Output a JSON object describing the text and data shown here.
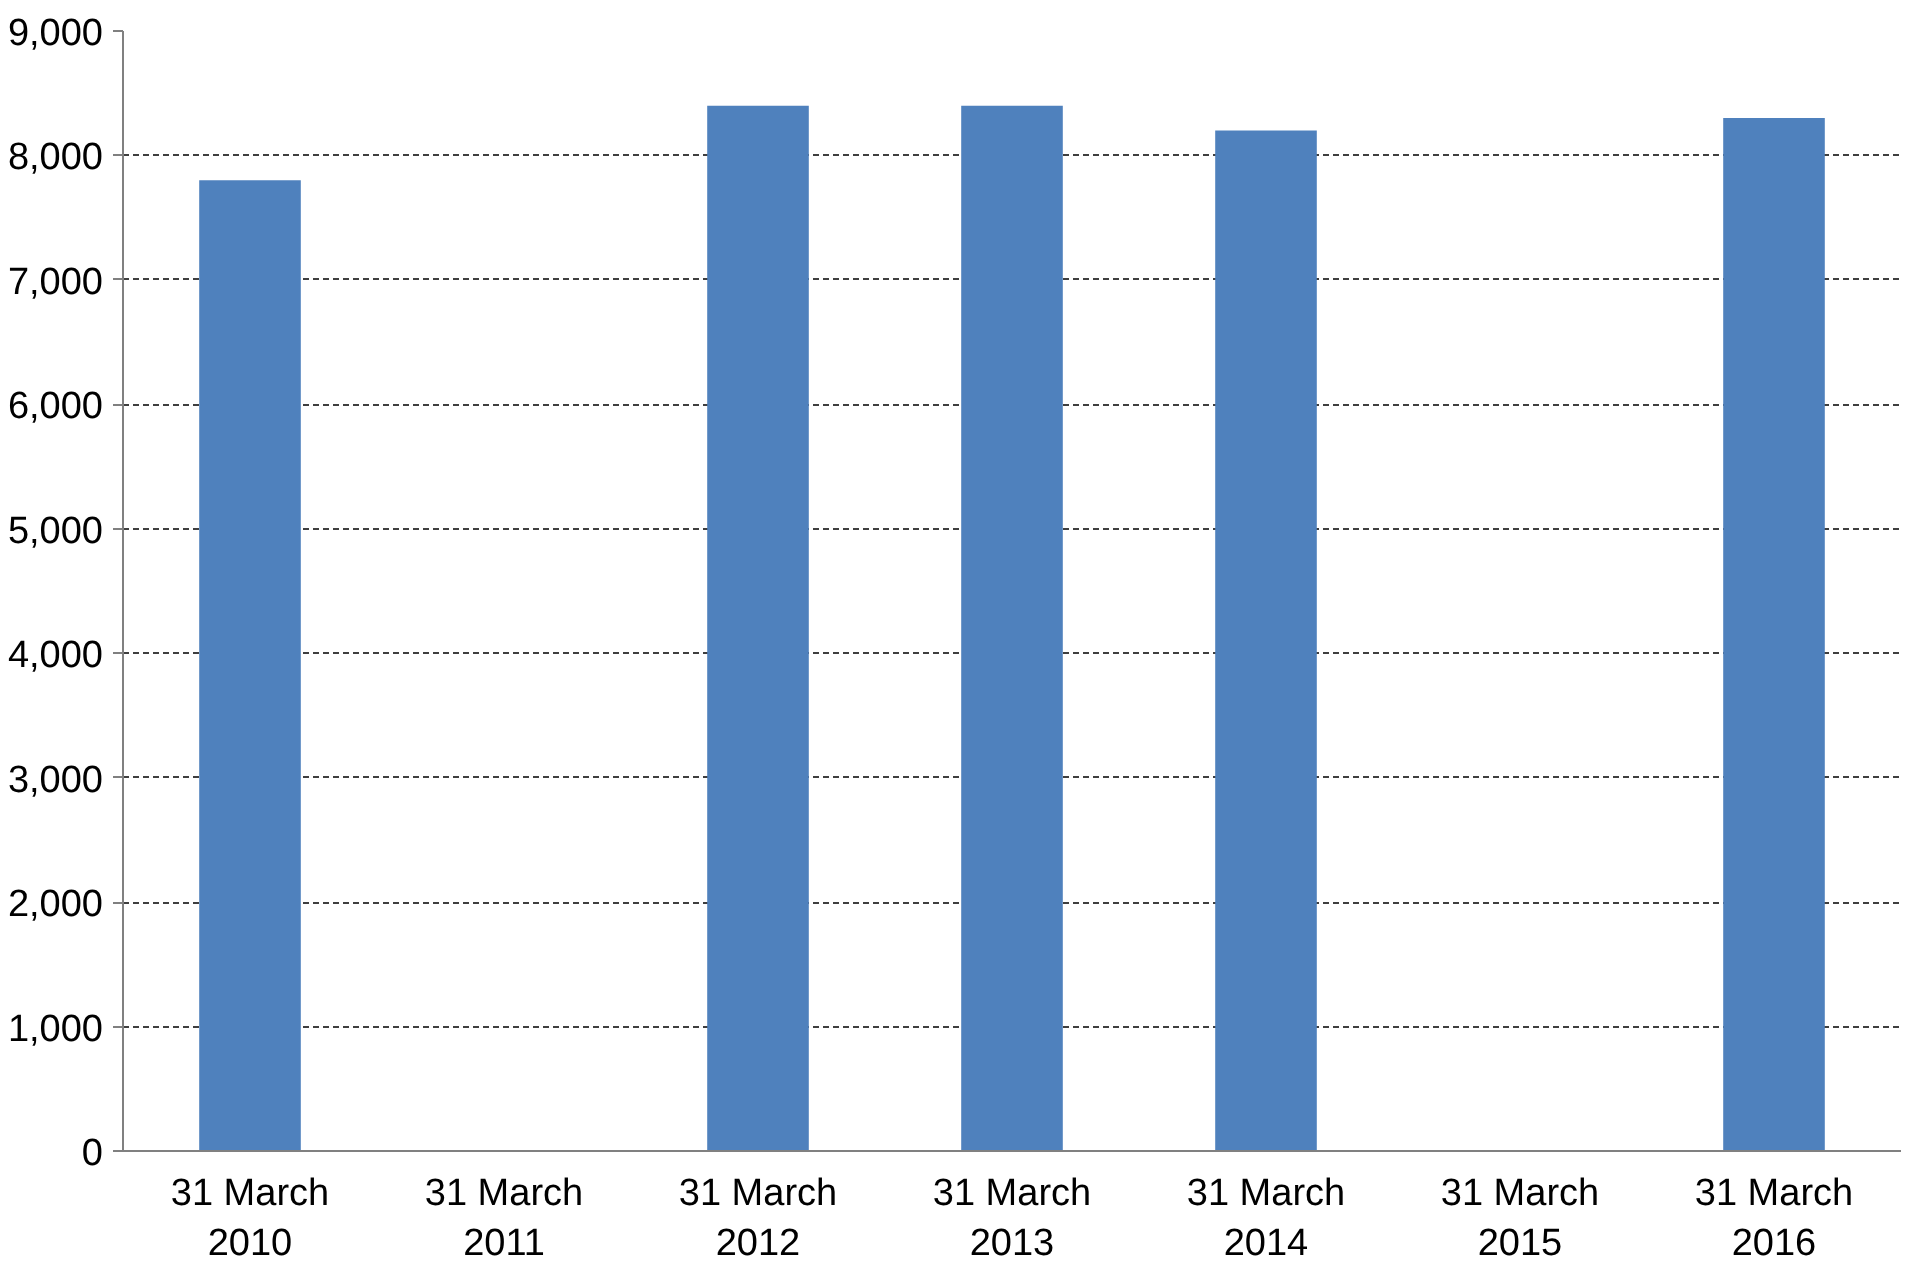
{
  "chart_data": {
    "type": "bar",
    "categories": [
      "31 March\n2010",
      "31 March\n2011",
      "31 March\n2012",
      "31 March\n2013",
      "31 March\n2014",
      "31 March\n2015",
      "31 March\n2016"
    ],
    "values": [
      7800,
      null,
      8400,
      8400,
      8200,
      null,
      8300
    ],
    "color": "#4f81bd",
    "ylim": [
      0,
      9000
    ],
    "yticks": [
      0,
      {
        "value": 1000,
        "label": "1,000"
      },
      {
        "value": 2000,
        "label": "2,000"
      },
      {
        "value": 3000,
        "label": "3,000"
      },
      {
        "value": 4000,
        "label": "4,000"
      },
      {
        "value": 5000,
        "label": "5,000"
      },
      {
        "value": 6000,
        "label": "6,000"
      },
      {
        "value": 7000,
        "label": "7,000"
      },
      {
        "value": 8000,
        "label": "8,000"
      },
      {
        "value": 9000,
        "label": "9,000"
      }
    ],
    "grid": "y"
  }
}
